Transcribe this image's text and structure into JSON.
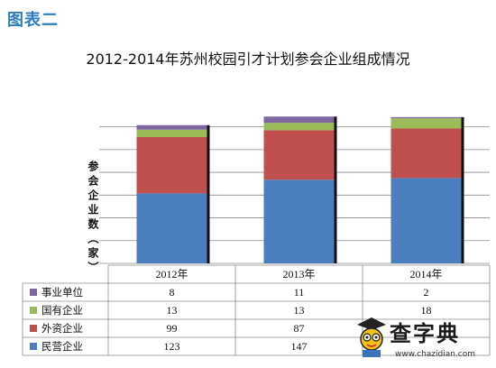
{
  "caption": "图表二",
  "chart_data": {
    "type": "bar",
    "stacked": true,
    "title": "2012-2014年苏州校园引才计划参会企业组成情况",
    "ylabel": "参会企业数（家）",
    "categories": [
      "2012年",
      "2013年",
      "2014年"
    ],
    "series": [
      {
        "name": "民营企业",
        "color": "#4a7ebf",
        "values": [
          123,
          147,
          150
        ]
      },
      {
        "name": "外资企业",
        "color": "#c0504d",
        "values": [
          99,
          87,
          87
        ]
      },
      {
        "name": "国有企业",
        "color": "#9bbb59",
        "values": [
          13,
          13,
          18
        ]
      },
      {
        "name": "事业单位",
        "color": "#7f64a2",
        "values": [
          8,
          11,
          2
        ]
      }
    ],
    "table_rows": [
      {
        "name": "事业单位",
        "color": "#7f64a2",
        "values": [
          "8",
          "11",
          "2"
        ]
      },
      {
        "name": "国有企业",
        "color": "#9bbb59",
        "values": [
          "13",
          "13",
          "18"
        ]
      },
      {
        "name": "外资企业",
        "color": "#c0504d",
        "values": [
          "99",
          "87",
          ""
        ]
      },
      {
        "name": "民营企业",
        "color": "#4a7ebf",
        "values": [
          "123",
          "147",
          ""
        ]
      }
    ],
    "ylim": [
      0,
      260
    ],
    "grid": true
  },
  "watermark": {
    "text": "查字典",
    "url": "www.chazidian.com"
  }
}
